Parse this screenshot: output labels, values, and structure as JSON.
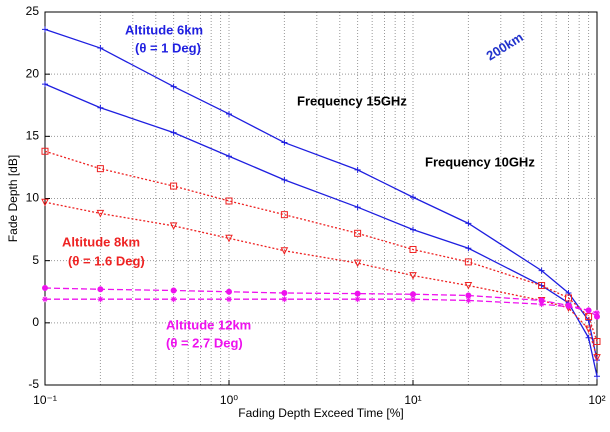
{
  "chart_data": {
    "type": "line",
    "ylabel": "Fade Depth [dB]",
    "xlabel": "Fading Depth Exceed Time [%]",
    "xlog": true,
    "grid": true,
    "xlim": [
      0.1,
      100
    ],
    "ylim": [
      -5,
      25
    ],
    "xticks": [
      {
        "value": 0.1,
        "label": "10⁻¹"
      },
      {
        "value": 1,
        "label": "10⁰"
      },
      {
        "value": 10,
        "label": "10¹"
      },
      {
        "value": 100,
        "label": "10²"
      }
    ],
    "x_minor_ticks": [
      0.2,
      0.3,
      0.4,
      0.5,
      0.6,
      0.7,
      0.8,
      0.9,
      2,
      3,
      4,
      5,
      6,
      7,
      8,
      9,
      20,
      30,
      40,
      50,
      60,
      70,
      80,
      90
    ],
    "yticks": [
      -5,
      0,
      5,
      10,
      15,
      20,
      25
    ],
    "x": [
      0.1,
      0.2,
      0.5,
      1,
      2,
      5,
      10,
      20,
      50,
      70,
      90,
      100
    ],
    "series": [
      {
        "color": "#1f1fe0",
        "linestyle": "solid",
        "marker": "plus",
        "values": [
          23.6,
          22.1,
          19.0,
          16.8,
          14.5,
          12.3,
          10.1,
          8.0,
          4.2,
          2.4,
          0.2,
          -3.0
        ]
      },
      {
        "color": "#1f1fe0",
        "linestyle": "solid",
        "marker": "plus",
        "values": [
          19.2,
          17.3,
          15.3,
          13.4,
          11.5,
          9.3,
          7.5,
          6.0,
          3.0,
          1.6,
          -1.2,
          -4.3
        ]
      },
      {
        "color": "#ee2222",
        "linestyle": "dotted",
        "marker": "square",
        "values": [
          13.8,
          12.4,
          11.0,
          9.8,
          8.7,
          7.2,
          5.9,
          4.9,
          3.0,
          2.0,
          0.5,
          -1.5
        ]
      },
      {
        "color": "#ee2222",
        "linestyle": "dotted",
        "marker": "triangle",
        "values": [
          9.7,
          8.8,
          7.8,
          6.8,
          5.8,
          4.8,
          3.8,
          3.0,
          1.8,
          1.2,
          -0.5,
          -2.8
        ]
      },
      {
        "color": "#ee11ee",
        "linestyle": "dashed",
        "marker": "circle",
        "values": [
          2.8,
          2.7,
          2.6,
          2.5,
          2.4,
          2.35,
          2.3,
          2.2,
          1.8,
          1.4,
          1.0,
          0.5
        ]
      },
      {
        "color": "#ee11ee",
        "linestyle": "dashed",
        "marker": "star",
        "values": [
          1.9,
          1.9,
          1.9,
          1.9,
          1.9,
          1.9,
          1.9,
          1.8,
          1.5,
          1.3,
          1.0,
          0.8
        ]
      }
    ],
    "annotations": [
      {
        "text": "Altitude 6km",
        "color": "#1f1fe0"
      },
      {
        "text": "(θ = 1 Deg)",
        "color": "#1f1fe0"
      },
      {
        "text": "Frequency 15GHz",
        "color": "#000000"
      },
      {
        "text": "Frequency 10GHz",
        "color": "#000000"
      },
      {
        "text": "Altitude 8km",
        "color": "#ee2222"
      },
      {
        "text": "(θ = 1.6 Deg)",
        "color": "#ee2222"
      },
      {
        "text": "Altitude 12km",
        "color": "#ee11ee"
      },
      {
        "text": "(θ = 2.7 Deg)",
        "color": "#ee11ee"
      },
      {
        "text": "200km",
        "color": "#2233cc"
      }
    ]
  }
}
